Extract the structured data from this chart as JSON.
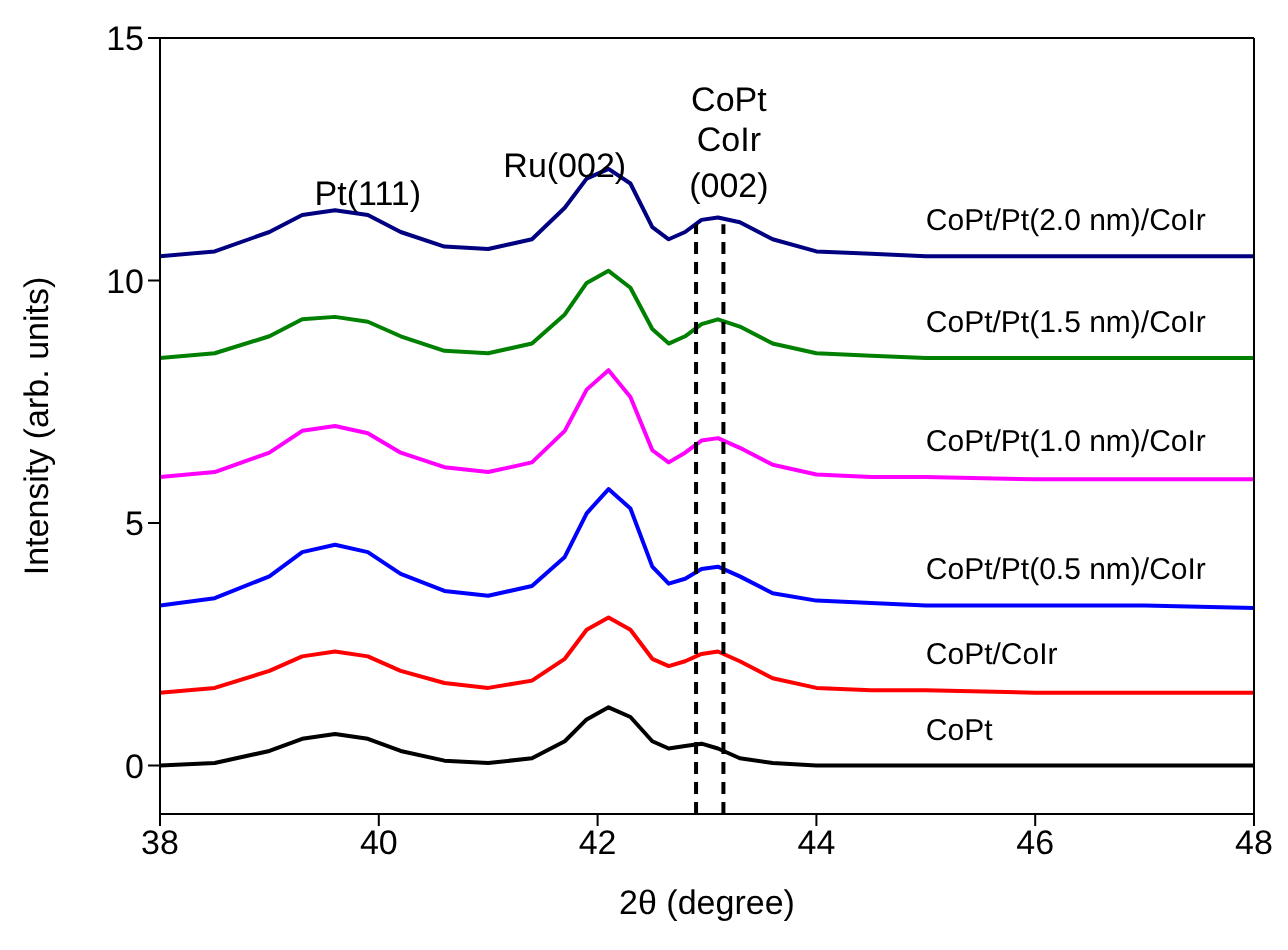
{
  "chart_data": {
    "type": "line",
    "xlabel": "2θ (degree)",
    "ylabel": "Intensity (arb. units)",
    "xlim": [
      38,
      48
    ],
    "xticks": [
      38,
      40,
      42,
      44,
      46,
      48
    ],
    "ylim": [
      -1,
      15
    ],
    "yticks": [
      0,
      5,
      10,
      15
    ],
    "grid": false,
    "legend": false,
    "marker": "none",
    "line_style": "solid",
    "x": [
      38,
      38.5,
      39,
      39.3,
      39.6,
      39.9,
      40.2,
      40.6,
      41,
      41.4,
      41.7,
      41.9,
      42.1,
      42.3,
      42.5,
      42.65,
      42.8,
      42.95,
      43.1,
      43.3,
      43.6,
      44,
      44.5,
      45,
      46,
      47,
      48
    ],
    "series": [
      {
        "name": "CoPt",
        "color": "#000000",
        "values": [
          0,
          0.05,
          0.3,
          0.55,
          0.65,
          0.55,
          0.3,
          0.1,
          0.05,
          0.15,
          0.5,
          0.95,
          1.2,
          1.0,
          0.5,
          0.35,
          0.4,
          0.45,
          0.35,
          0.15,
          0.05,
          0,
          0,
          0,
          0,
          0,
          0
        ]
      },
      {
        "name": "CoPt/CoIr",
        "color": "#ff0000",
        "values": [
          1.5,
          1.6,
          1.95,
          2.25,
          2.35,
          2.25,
          1.95,
          1.7,
          1.6,
          1.75,
          2.2,
          2.8,
          3.05,
          2.8,
          2.2,
          2.05,
          2.15,
          2.3,
          2.35,
          2.15,
          1.8,
          1.6,
          1.55,
          1.55,
          1.5,
          1.5,
          1.5
        ]
      },
      {
        "name": "CoPt/Pt(0.5 nm)/CoIr",
        "color": "#0000ff",
        "values": [
          3.3,
          3.45,
          3.9,
          4.4,
          4.55,
          4.4,
          3.95,
          3.6,
          3.5,
          3.7,
          4.3,
          5.2,
          5.7,
          5.3,
          4.1,
          3.75,
          3.85,
          4.05,
          4.1,
          3.9,
          3.55,
          3.4,
          3.35,
          3.3,
          3.3,
          3.3,
          3.25
        ]
      },
      {
        "name": "CoPt/Pt(1.0 nm)/CoIr",
        "color": "#ff00ff",
        "values": [
          5.95,
          6.05,
          6.45,
          6.9,
          7.0,
          6.85,
          6.45,
          6.15,
          6.05,
          6.25,
          6.9,
          7.75,
          8.15,
          7.6,
          6.5,
          6.25,
          6.45,
          6.7,
          6.75,
          6.55,
          6.2,
          6.0,
          5.95,
          5.95,
          5.9,
          5.9,
          5.9
        ]
      },
      {
        "name": "CoPt/Pt(1.5 nm)/CoIr",
        "color": "#008000",
        "values": [
          8.4,
          8.5,
          8.85,
          9.2,
          9.25,
          9.15,
          8.85,
          8.55,
          8.5,
          8.7,
          9.3,
          9.95,
          10.2,
          9.85,
          9.0,
          8.7,
          8.85,
          9.1,
          9.2,
          9.05,
          8.7,
          8.5,
          8.45,
          8.4,
          8.4,
          8.4,
          8.4
        ]
      },
      {
        "name": "CoPt/Pt(2.0 nm)/CoIr",
        "color": "#000080",
        "values": [
          10.5,
          10.6,
          11.0,
          11.35,
          11.45,
          11.35,
          11.0,
          10.7,
          10.65,
          10.85,
          11.5,
          12.1,
          12.3,
          12.0,
          11.1,
          10.85,
          11.0,
          11.25,
          11.3,
          11.2,
          10.85,
          10.6,
          10.55,
          10.5,
          10.5,
          10.5,
          10.5
        ]
      }
    ],
    "ref_lines": [
      {
        "axis": "x",
        "value": 42.9,
        "color": "#000000",
        "line_style": "dashed"
      },
      {
        "axis": "x",
        "value": 43.15,
        "color": "#000000",
        "line_style": "dashed"
      }
    ],
    "annotations": [
      "Pt(111)",
      "Ru(002)",
      "CoPt",
      "CoIr",
      "(002)"
    ]
  }
}
